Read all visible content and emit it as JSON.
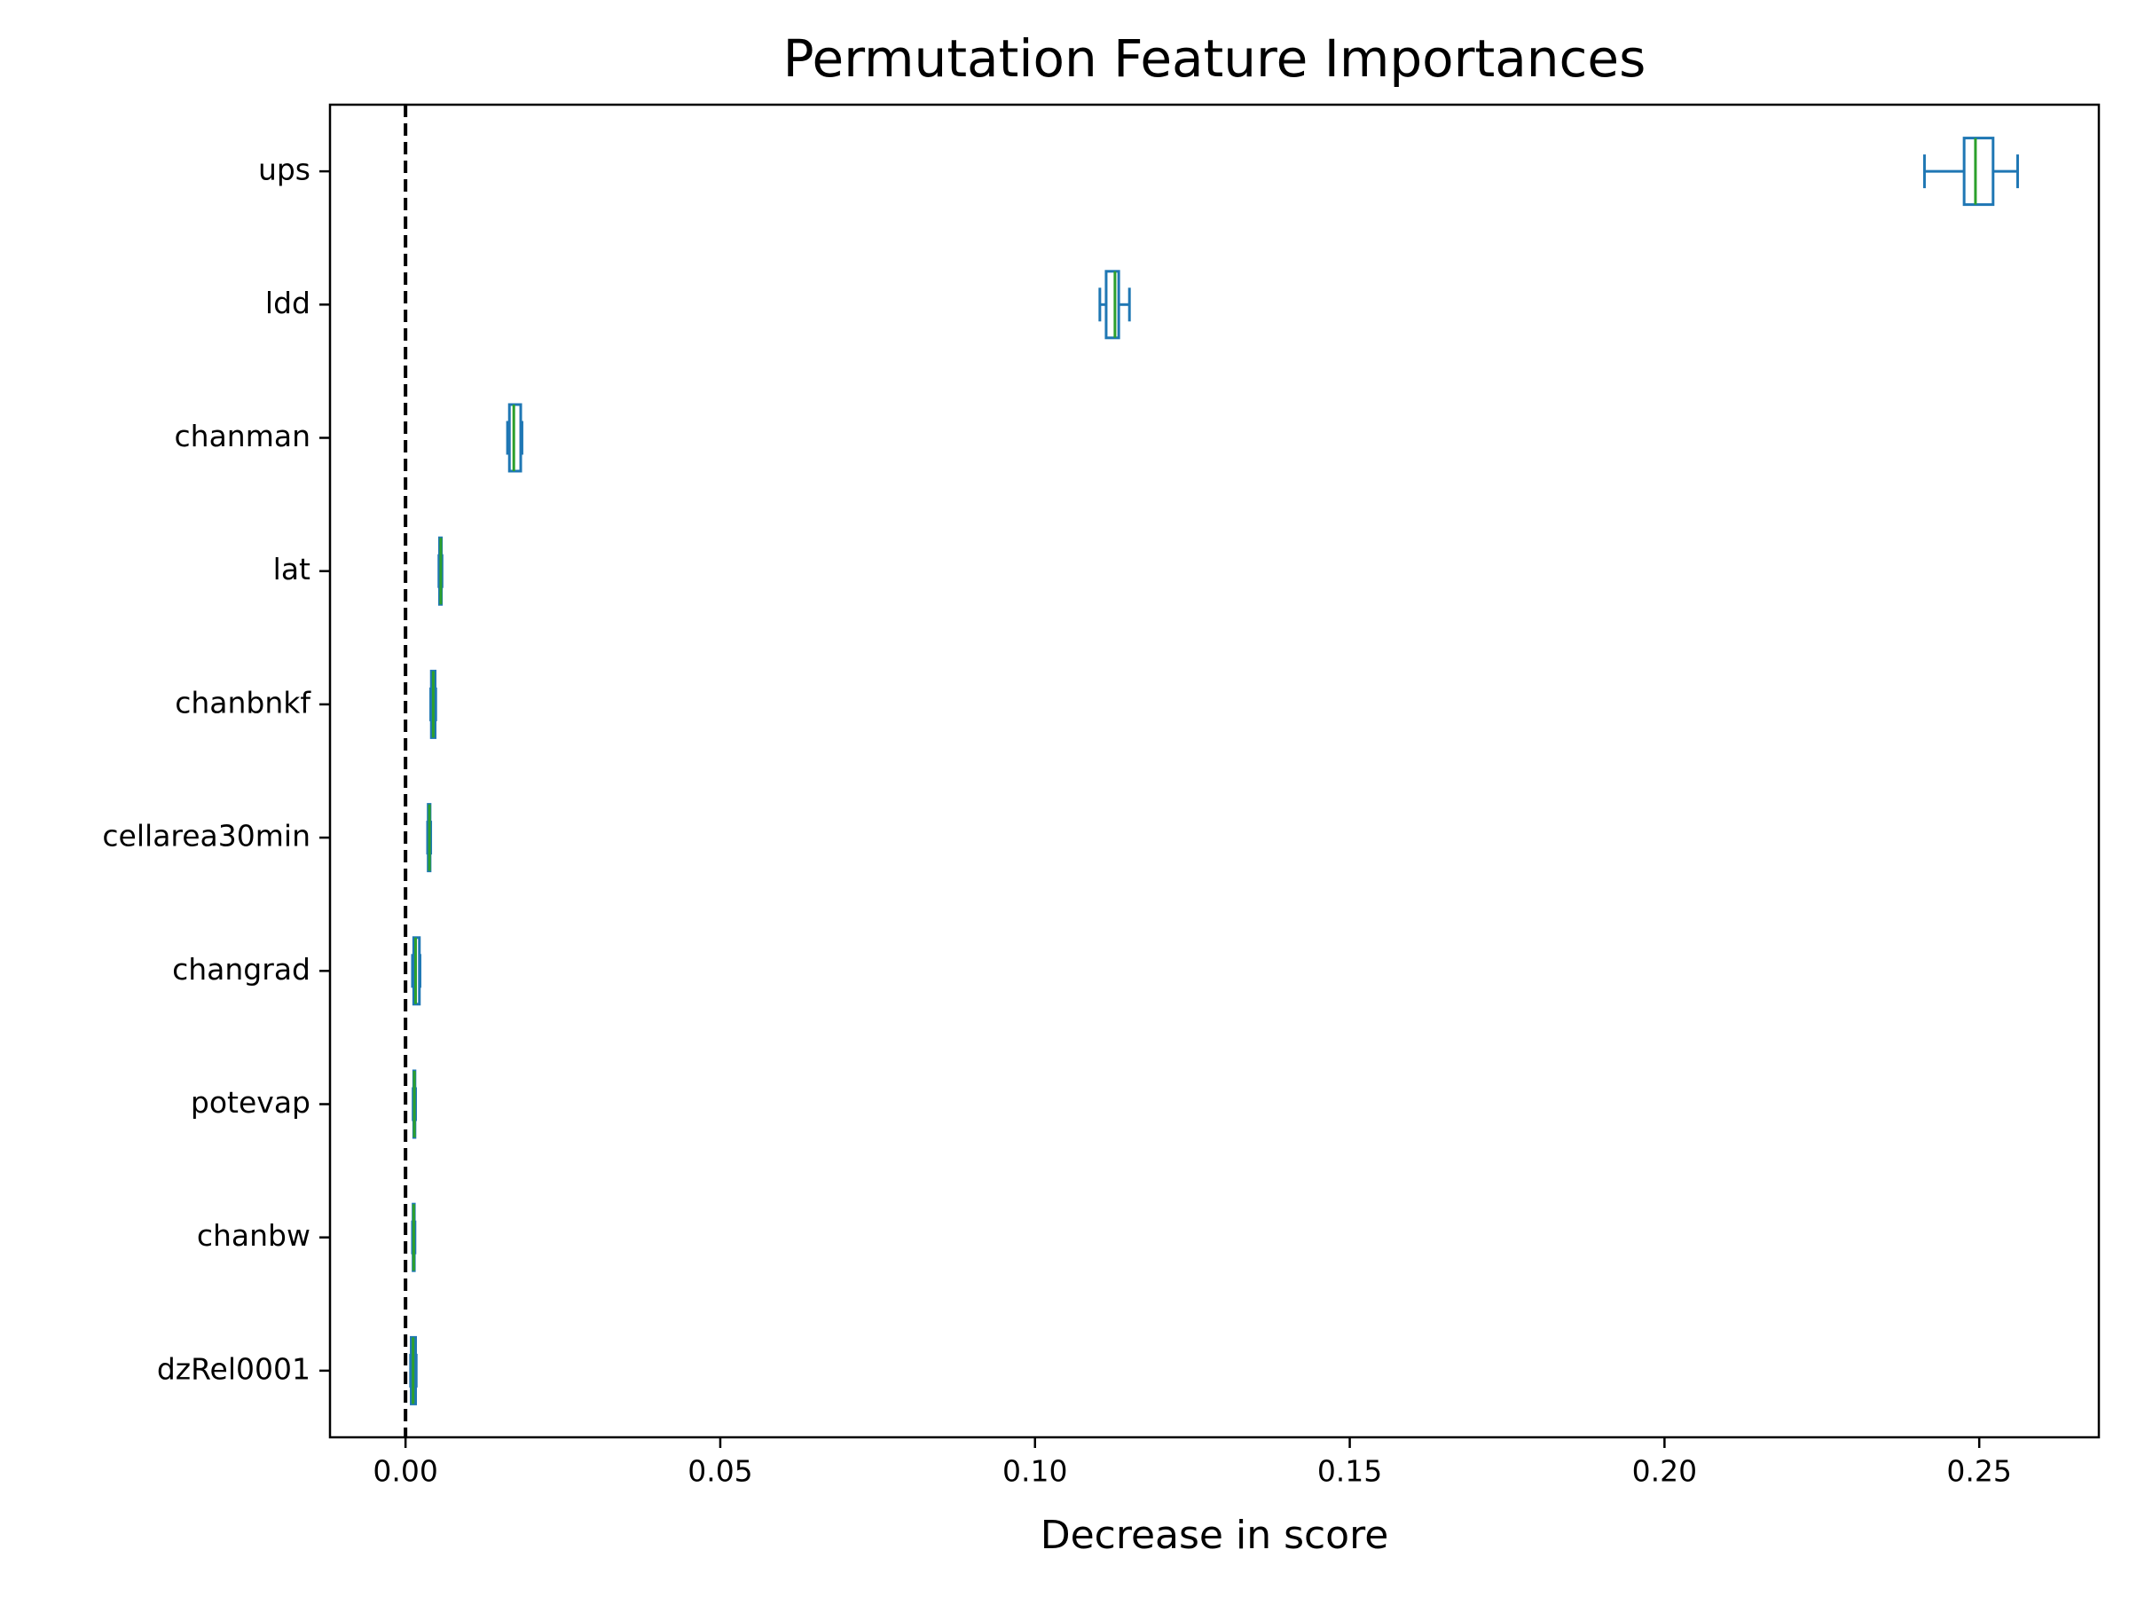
{
  "chart_data": {
    "type": "boxplot",
    "orientation": "horizontal",
    "title": "Permutation Feature Importances",
    "x_label": "Decrease in score",
    "categories": [
      "ups",
      "ldd",
      "chanman",
      "lat",
      "chanbnkf",
      "cellarea30min",
      "changrad",
      "potevap",
      "chanbw",
      "dzRel0001"
    ],
    "boxes": [
      {
        "low": 0.2413,
        "q1": 0.2476,
        "median": 0.2494,
        "q3": 0.2522,
        "high": 0.2561
      },
      {
        "low": 0.1103,
        "q1": 0.1113,
        "median": 0.1127,
        "q3": 0.1133,
        "high": 0.115
      },
      {
        "low": 0.0162,
        "q1": 0.0165,
        "median": 0.0172,
        "q3": 0.0183,
        "high": 0.0185
      },
      {
        "low": 0.0053,
        "q1": 0.0054,
        "median": 0.0056,
        "q3": 0.0057,
        "high": 0.0058
      },
      {
        "low": 0.004,
        "q1": 0.0041,
        "median": 0.0044,
        "q3": 0.0047,
        "high": 0.0048
      },
      {
        "low": 0.0035,
        "q1": 0.0036,
        "median": 0.0038,
        "q3": 0.0039,
        "high": 0.004
      },
      {
        "low": 0.0011,
        "q1": 0.0013,
        "median": 0.0016,
        "q3": 0.0022,
        "high": 0.0023
      },
      {
        "low": 0.0012,
        "q1": 0.0013,
        "median": 0.0014,
        "q3": 0.0015,
        "high": 0.0016
      },
      {
        "low": 0.0011,
        "q1": 0.0012,
        "median": 0.0013,
        "q3": 0.0014,
        "high": 0.0015
      },
      {
        "low": 0.0008,
        "q1": 0.0009,
        "median": 0.0012,
        "q3": 0.0016,
        "high": 0.0017
      }
    ],
    "box_color": "#1f77b4",
    "median_color": "#2ca02c",
    "reference_line": 0,
    "reference_line_color": "#000000",
    "xlim": [
      -0.012,
      0.269
    ],
    "xticks": [
      {
        "value": 0,
        "label": "0.00"
      },
      0.05,
      {
        "value": 0.1,
        "label": "0.10"
      },
      0.15,
      {
        "value": 0.2,
        "label": "0.20"
      },
      0.25
    ],
    "grid": false
  }
}
